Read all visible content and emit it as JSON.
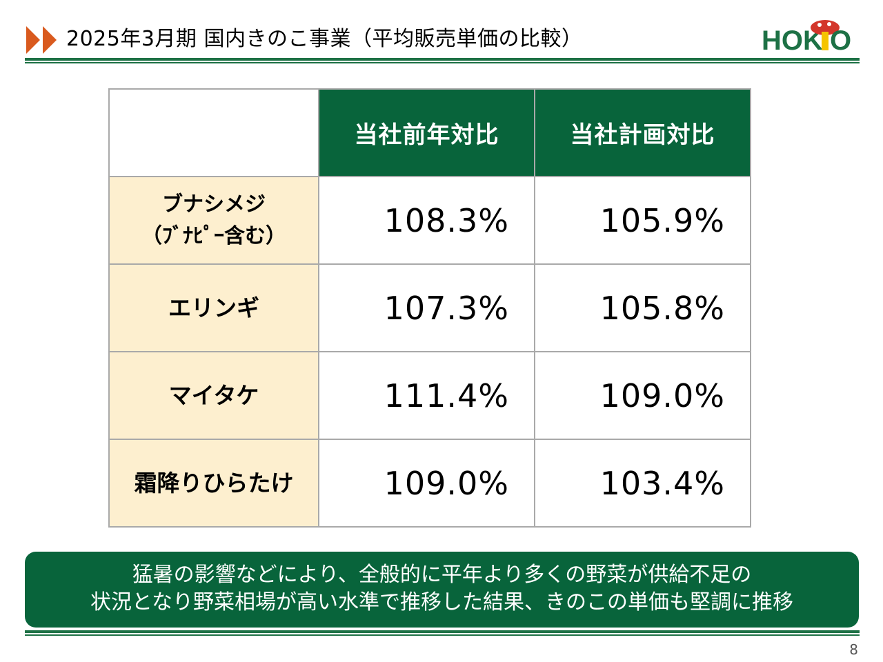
{
  "header": {
    "title": "2025年3月期 国内きのこ事業（平均販売単価の比較）",
    "logo_text": "HOKTO",
    "brand_green": "#1d7145",
    "logo_red": "#d3362b",
    "logo_yellow": "#f5c400",
    "arrow_color": "#d95a1e",
    "arrows_icon": "double-triangle-arrow-icon"
  },
  "table": {
    "corner": "",
    "columns": [
      "当社前年対比",
      "当社計画対比"
    ],
    "rows": [
      {
        "label_line1": "ブナシメジ",
        "label_line2": "（ﾌﾞﾅﾋﾟｰ含む）",
        "yoy": "108.3%",
        "plan": "105.9%"
      },
      {
        "label_line1": "エリンギ",
        "label_line2": "",
        "yoy": "107.3%",
        "plan": "105.8%"
      },
      {
        "label_line1": "マイタケ",
        "label_line2": "",
        "yoy": "111.4%",
        "plan": "109.0%"
      },
      {
        "label_line1": "霜降りひらたけ",
        "label_line2": "",
        "yoy": "109.0%",
        "plan": "103.4%"
      }
    ],
    "header_bg": "#08643b",
    "rowhead_bg": "#fdefcf"
  },
  "callout": {
    "line1": "猛暑の影響などにより、全般的に平年より多くの野菜が供給不足の",
    "line2": "状況となり野菜相場が高い水準で推移した結果、きのこの単価も堅調に推移",
    "bg": "#08643b"
  },
  "footer": {
    "page_number": "8"
  }
}
